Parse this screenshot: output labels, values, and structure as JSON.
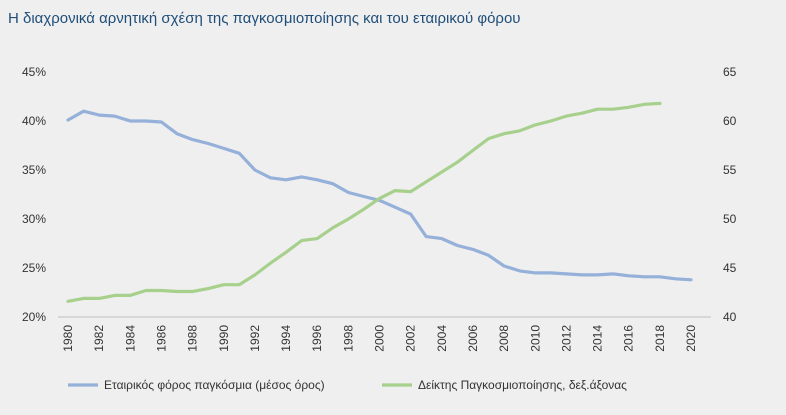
{
  "title": "Η διαχρονικά αρνητική σχέση της παγκοσμιοποίησης και του εταιρικού φόρου",
  "chart_data": {
    "type": "line",
    "x": [
      1980,
      1981,
      1982,
      1983,
      1984,
      1985,
      1986,
      1987,
      1988,
      1989,
      1990,
      1991,
      1992,
      1993,
      1994,
      1995,
      1996,
      1997,
      1998,
      1999,
      2000,
      2001,
      2002,
      2003,
      2004,
      2005,
      2006,
      2007,
      2008,
      2009,
      2010,
      2011,
      2012,
      2013,
      2014,
      2015,
      2016,
      2017,
      2018,
      2019,
      2020
    ],
    "x_tick_labels": [
      "1980",
      "1982",
      "1984",
      "1986",
      "1988",
      "1990",
      "1992",
      "1994",
      "1996",
      "1998",
      "2000",
      "2002",
      "2004",
      "2006",
      "2008",
      "2010",
      "2012",
      "2014",
      "2016",
      "2018",
      "2020"
    ],
    "y_left_ticks": [
      "20%",
      "25%",
      "30%",
      "35%",
      "40%",
      "45%"
    ],
    "y_right_ticks": [
      "40",
      "45",
      "50",
      "55",
      "60",
      "65"
    ],
    "ylim_left": [
      20,
      45
    ],
    "ylim_right": [
      40,
      65
    ],
    "grid": false,
    "legend_position": "bottom",
    "series": [
      {
        "name": "Εταιρικός φόρος παγκόσμια (μέσος όρος)",
        "axis": "left",
        "color": "#95b0d9",
        "values": [
          40.1,
          41.0,
          40.6,
          40.5,
          40.0,
          40.0,
          39.9,
          38.7,
          38.1,
          37.7,
          37.2,
          36.7,
          35.0,
          34.2,
          34.0,
          34.3,
          34.0,
          33.6,
          32.7,
          32.3,
          31.9,
          31.2,
          30.5,
          28.2,
          28.0,
          27.3,
          26.9,
          26.3,
          25.2,
          24.7,
          24.5,
          24.5,
          24.4,
          24.3,
          24.3,
          24.4,
          24.2,
          24.1,
          24.1,
          23.9,
          23.8
        ]
      },
      {
        "name": "Δείκτης Παγκοσμιοποίησης, δεξ.άξονας",
        "axis": "right",
        "color": "#a8d08d",
        "values": [
          41.6,
          41.9,
          41.9,
          42.2,
          42.2,
          42.7,
          42.7,
          42.6,
          42.6,
          42.9,
          43.3,
          43.3,
          44.3,
          45.5,
          46.6,
          47.8,
          48.0,
          49.1,
          50.0,
          51.0,
          52.1,
          52.9,
          52.8,
          53.8,
          54.8,
          55.8,
          57.0,
          58.2,
          58.7,
          59.0,
          59.6,
          60.0,
          60.5,
          60.8,
          61.2,
          61.2,
          61.4,
          61.7,
          61.8,
          null,
          null
        ]
      }
    ]
  }
}
